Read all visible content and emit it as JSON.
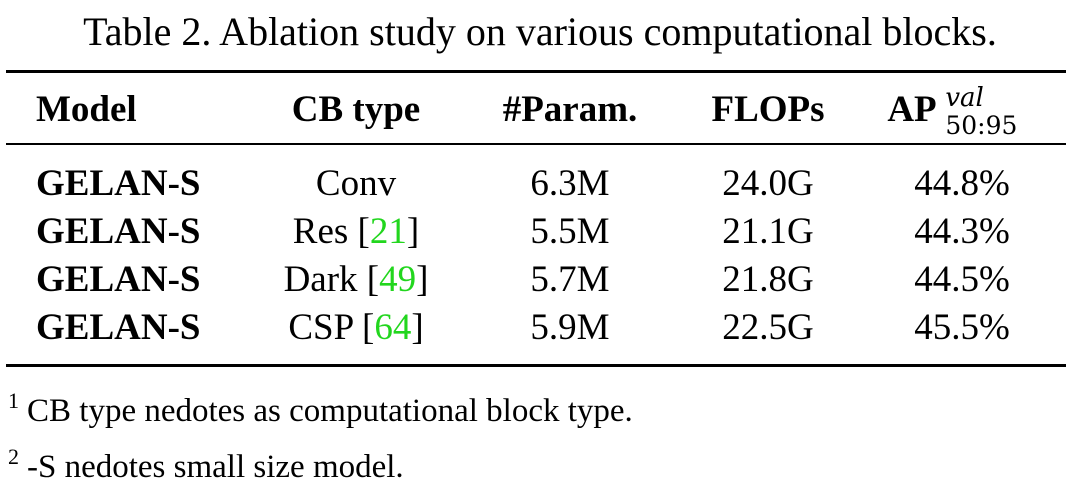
{
  "table": {
    "caption": "Table 2. Ablation study on various computational blocks.",
    "headers": {
      "model": "Model",
      "cb_type": "CB type",
      "param": "#Param.",
      "flops": "FLOPs",
      "ap_main": "AP",
      "ap_sup": "val",
      "ap_sub": "50:95"
    },
    "rows": [
      {
        "model": "GELAN-S",
        "cb_name": "Conv",
        "cb_ref": "",
        "param": "6.3M",
        "flops": "24.0G",
        "ap": "44.8%"
      },
      {
        "model": "GELAN-S",
        "cb_name": "Res",
        "cb_ref": "21",
        "param": "5.5M",
        "flops": "21.1G",
        "ap": "44.3%"
      },
      {
        "model": "GELAN-S",
        "cb_name": "Dark",
        "cb_ref": "49",
        "param": "5.7M",
        "flops": "21.8G",
        "ap": "44.5%"
      },
      {
        "model": "GELAN-S",
        "cb_name": "CSP",
        "cb_ref": "64",
        "param": "5.9M",
        "flops": "22.5G",
        "ap": "45.5%"
      }
    ],
    "footnotes": [
      {
        "mark": "1",
        "text": "CB type nedotes as computational block type."
      },
      {
        "mark": "2",
        "text": "-S nedotes small size model."
      }
    ]
  },
  "colors": {
    "text": "#000000",
    "reference_link": "#22d61e",
    "background": "#ffffff"
  }
}
